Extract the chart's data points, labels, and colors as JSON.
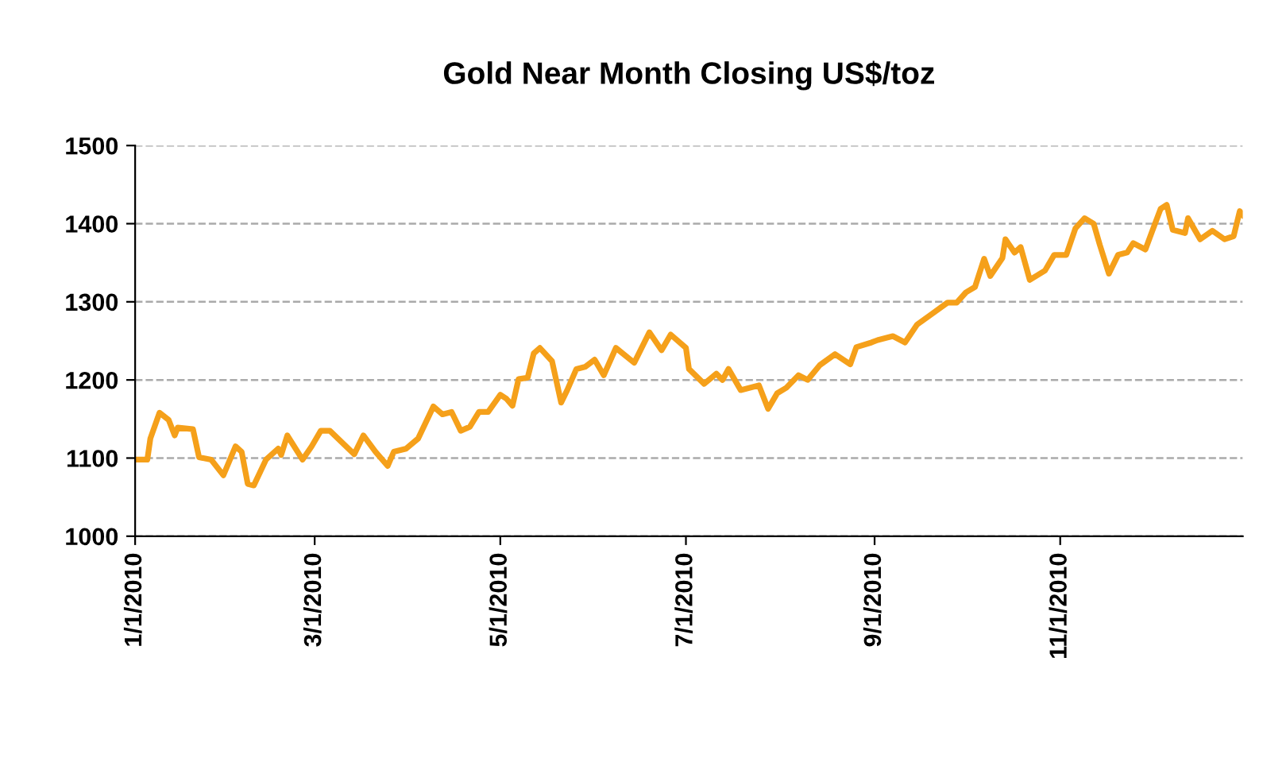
{
  "chart_data": {
    "type": "line",
    "title": "Gold Near Month Closing US$/toz",
    "x": [
      "2010-01-02",
      "2010-01-05",
      "2010-01-06",
      "2010-01-09",
      "2010-01-12",
      "2010-01-14",
      "2010-01-15",
      "2010-01-20",
      "2010-01-22",
      "2010-01-26",
      "2010-01-30",
      "2010-02-03",
      "2010-02-05",
      "2010-02-07",
      "2010-02-09",
      "2010-02-13",
      "2010-02-17",
      "2010-02-18",
      "2010-02-20",
      "2010-02-25",
      "2010-02-28",
      "2010-03-03",
      "2010-03-06",
      "2010-03-14",
      "2010-03-17",
      "2010-03-21",
      "2010-03-25",
      "2010-03-27",
      "2010-03-31",
      "2010-04-04",
      "2010-04-09",
      "2010-04-12",
      "2010-04-15",
      "2010-04-18",
      "2010-04-21",
      "2010-04-24",
      "2010-04-27",
      "2010-05-01",
      "2010-05-03",
      "2010-05-05",
      "2010-05-07",
      "2010-05-10",
      "2010-05-12",
      "2010-05-14",
      "2010-05-18",
      "2010-05-21",
      "2010-05-23",
      "2010-05-26",
      "2010-05-29",
      "2010-06-01",
      "2010-06-04",
      "2010-06-08",
      "2010-06-14",
      "2010-06-19",
      "2010-06-23",
      "2010-06-26",
      "2010-07-01",
      "2010-07-02",
      "2010-07-07",
      "2010-07-11",
      "2010-07-13",
      "2010-07-15",
      "2010-07-19",
      "2010-07-22",
      "2010-07-25",
      "2010-07-28",
      "2010-07-31",
      "2010-08-03",
      "2010-08-07",
      "2010-08-10",
      "2010-08-14",
      "2010-08-19",
      "2010-08-24",
      "2010-08-26",
      "2010-08-31",
      "2010-09-02",
      "2010-09-07",
      "2010-09-11",
      "2010-09-15",
      "2010-09-20",
      "2010-09-25",
      "2010-09-28",
      "2010-10-01",
      "2010-10-04",
      "2010-10-07",
      "2010-10-09",
      "2010-10-13",
      "2010-10-14",
      "2010-10-17",
      "2010-10-19",
      "2010-10-22",
      "2010-10-27",
      "2010-10-30",
      "2010-11-03",
      "2010-11-06",
      "2010-11-09",
      "2010-11-12",
      "2010-11-14",
      "2010-11-17",
      "2010-11-20",
      "2010-11-23",
      "2010-11-25",
      "2010-11-29",
      "2010-12-01",
      "2010-12-04",
      "2010-12-06",
      "2010-12-08",
      "2010-12-12",
      "2010-12-13",
      "2010-12-17",
      "2010-12-21",
      "2010-12-25",
      "2010-12-28",
      "2010-12-30",
      "2010-12-31"
    ],
    "series": [
      {
        "color": "#f5a01a",
        "values": [
          1098,
          1098,
          1125,
          1158,
          1149,
          1129,
          1139,
          1137,
          1101,
          1098,
          1078,
          1115,
          1108,
          1067,
          1065,
          1098,
          1112,
          1104,
          1129,
          1098,
          1115,
          1135,
          1135,
          1105,
          1129,
          1108,
          1090,
          1108,
          1112,
          1125,
          1166,
          1156,
          1159,
          1135,
          1140,
          1159,
          1159,
          1181,
          1176,
          1167,
          1201,
          1203,
          1234,
          1241,
          1224,
          1171,
          1187,
          1214,
          1217,
          1226,
          1206,
          1241,
          1222,
          1261,
          1238,
          1258,
          1241,
          1214,
          1195,
          1208,
          1200,
          1214,
          1187,
          1190,
          1193,
          1163,
          1183,
          1190,
          1206,
          1200,
          1219,
          1233,
          1220,
          1242,
          1248,
          1251,
          1256,
          1248,
          1271,
          1285,
          1299,
          1299,
          1312,
          1319,
          1355,
          1333,
          1356,
          1380,
          1363,
          1370,
          1328,
          1340,
          1360,
          1360,
          1394,
          1407,
          1400,
          1373,
          1336,
          1360,
          1363,
          1375,
          1367,
          1388,
          1419,
          1424,
          1392,
          1388,
          1407,
          1380,
          1391,
          1380,
          1384,
          1416,
          1411
        ]
      }
    ],
    "xlim": [
      "2010-01-01",
      "2010-12-31"
    ],
    "xticks": [
      {
        "value": "2010-01-01",
        "label": "1/1/2010"
      },
      {
        "value": "2010-03-01",
        "label": "3/1/2010"
      },
      {
        "value": "2010-05-01",
        "label": "5/1/2010"
      },
      {
        "value": "2010-07-01",
        "label": "7/1/2010"
      },
      {
        "value": "2010-09-01",
        "label": "9/1/2010"
      },
      {
        "value": "2010-11-01",
        "label": "11/1/2010"
      }
    ],
    "ylim": [
      1000,
      1500
    ],
    "yticks": [
      1000,
      1100,
      1200,
      1300,
      1400,
      1500
    ],
    "grid": "y",
    "line_style": "solid",
    "marker": "none"
  }
}
